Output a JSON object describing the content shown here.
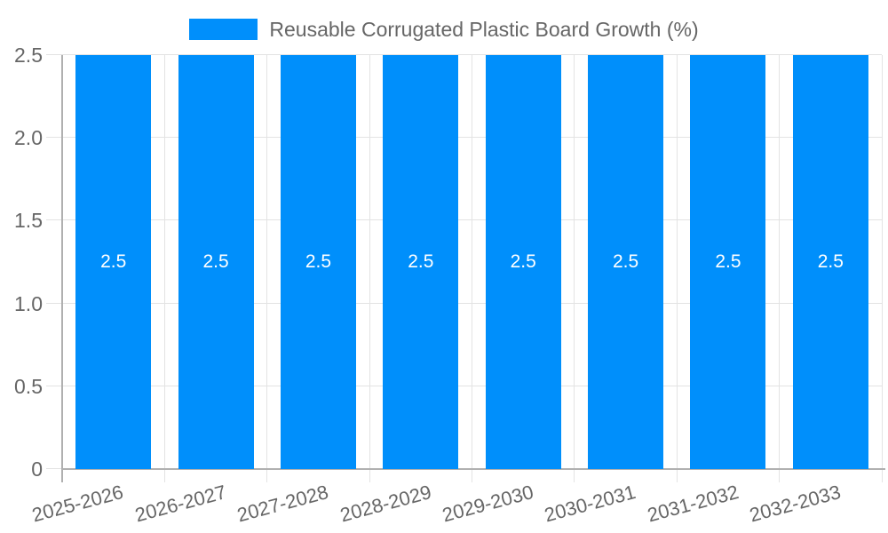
{
  "chart_data": {
    "type": "bar",
    "categories": [
      "2025-2026",
      "2026-2027",
      "2027-2028",
      "2028-2029",
      "2029-2030",
      "2030-2031",
      "2031-2032",
      "2032-2033"
    ],
    "series": [
      {
        "name": "Reusable Corrugated Plastic Board Growth (%)",
        "values": [
          2.5,
          2.5,
          2.5,
          2.5,
          2.5,
          2.5,
          2.5,
          2.5
        ]
      }
    ],
    "bar_value_labels": [
      "2.5",
      "2.5",
      "2.5",
      "2.5",
      "2.5",
      "2.5",
      "2.5",
      "2.5"
    ],
    "title": "",
    "xlabel": "",
    "ylabel": "",
    "ylim": [
      0,
      2.5
    ],
    "yticks": [
      0,
      0.5,
      1.0,
      1.5,
      2.0,
      2.5
    ],
    "ytick_labels": [
      "0",
      "0.5",
      "1.0",
      "1.5",
      "2.0",
      "2.5"
    ],
    "legend_position": "top-center",
    "grid": true,
    "x_label_rotation_deg": -15,
    "colors": {
      "bar": "#008FFB",
      "value_label": "#ffffff",
      "axis_label": "#666666",
      "gridline": "#e3e3e3",
      "axis_line": "#b0b0b0",
      "background": "#ffffff"
    }
  }
}
